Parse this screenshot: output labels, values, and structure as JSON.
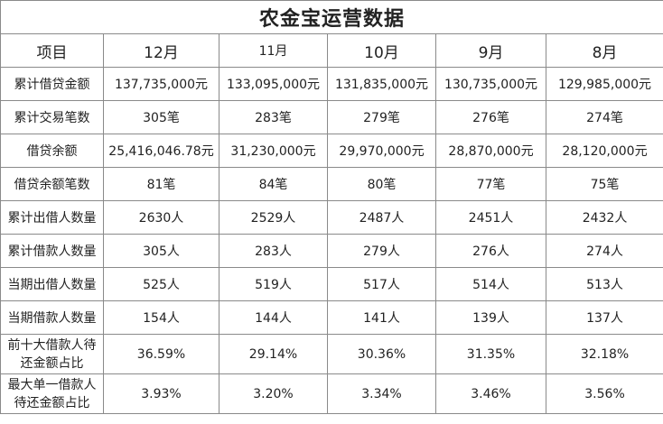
{
  "title": "农金宝运营数据",
  "columns": [
    "项目",
    "12月",
    "11月",
    "10月",
    "9月",
    "8月"
  ],
  "rows": [
    {
      "label": "累计借贷金额",
      "values": [
        "137,735,000元",
        "133,095,000元",
        "131,835,000元",
        "130,735,000元",
        "129,985,000元"
      ]
    },
    {
      "label": "累计交易笔数",
      "values": [
        "305笔",
        "283笔",
        "279笔",
        "276笔",
        "274笔"
      ]
    },
    {
      "label": "借贷余额",
      "values": [
        "25,416,046.78元",
        "31,230,000元",
        "29,970,000元",
        "28,870,000元",
        "28,120,000元"
      ]
    },
    {
      "label": "借贷余额笔数",
      "values": [
        "81笔",
        "84笔",
        "80笔",
        "77笔",
        "75笔"
      ]
    },
    {
      "label": "累计出借人数量",
      "values": [
        "2630人",
        "2529人",
        "2487人",
        "2451人",
        "2432人"
      ]
    },
    {
      "label": "累计借款人数量",
      "values": [
        "305人",
        "283人",
        "279人",
        "276人",
        "274人"
      ]
    },
    {
      "label": "当期出借人数量",
      "values": [
        "525人",
        "519人",
        "517人",
        "514人",
        "513人"
      ]
    },
    {
      "label": "当期借款人数量",
      "values": [
        "154人",
        "144人",
        "141人",
        "139人",
        "137人"
      ]
    },
    {
      "label_line1": "前十大借款人待",
      "label_line2": "还金额占比",
      "values": [
        "36.59%",
        "29.14%",
        "30.36%",
        "31.35%",
        "32.18%"
      ]
    },
    {
      "label_line1": "最大单一借款人",
      "label_line2": "待还金额占比",
      "values": [
        "3.93%",
        "3.20%",
        "3.34%",
        "3.46%",
        "3.56%"
      ]
    }
  ]
}
